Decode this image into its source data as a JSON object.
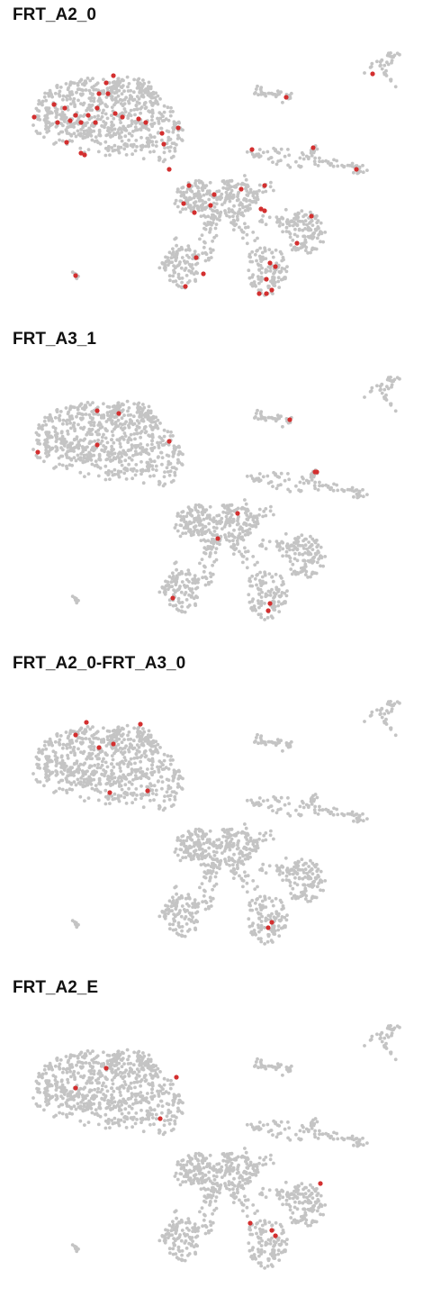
{
  "colors": {
    "background_cells": "#c4c4c4",
    "highlight_cells": "#d32f2f",
    "title": "#111111"
  },
  "chart_data": [
    {
      "type": "scatter",
      "title": "FRT_A2_0",
      "xlabel": "",
      "ylabel": "",
      "grid": false,
      "axes": "none",
      "background_color": "#c4c4c4",
      "highlight_color": "#d32f2f",
      "highlight_points": [
        [
          126,
          84
        ],
        [
          118,
          92
        ],
        [
          110,
          104
        ],
        [
          120,
          104
        ],
        [
          60,
          116
        ],
        [
          72,
          120
        ],
        [
          84,
          128
        ],
        [
          98,
          128
        ],
        [
          108,
          120
        ],
        [
          128,
          126
        ],
        [
          38,
          130
        ],
        [
          64,
          136
        ],
        [
          78,
          134
        ],
        [
          90,
          136
        ],
        [
          106,
          136
        ],
        [
          136,
          130
        ],
        [
          154,
          132
        ],
        [
          162,
          136
        ],
        [
          198,
          142
        ],
        [
          180,
          148
        ],
        [
          74,
          158
        ],
        [
          90,
          170
        ],
        [
          94,
          172
        ],
        [
          182,
          160
        ],
        [
          188,
          188
        ],
        [
          210,
          206
        ],
        [
          238,
          216
        ],
        [
          268,
          210
        ],
        [
          294,
          206
        ],
        [
          204,
          226
        ],
        [
          216,
          236
        ],
        [
          234,
          228
        ],
        [
          290,
          232
        ],
        [
          294,
          234
        ],
        [
          318,
          108
        ],
        [
          414,
          82
        ],
        [
          280,
          166
        ],
        [
          348,
          164
        ],
        [
          396,
          188
        ],
        [
          346,
          240
        ],
        [
          330,
          270
        ],
        [
          218,
          286
        ],
        [
          300,
          292
        ],
        [
          306,
          296
        ],
        [
          226,
          304
        ],
        [
          206,
          318
        ],
        [
          296,
          310
        ],
        [
          288,
          326
        ],
        [
          296,
          326
        ],
        [
          302,
          322
        ],
        [
          84,
          306
        ]
      ]
    },
    {
      "type": "scatter",
      "title": "FRT_A3_1",
      "xlabel": "",
      "ylabel": "",
      "grid": false,
      "axes": "none",
      "background_color": "#c4c4c4",
      "highlight_color": "#d32f2f",
      "highlight_points": [
        [
          108,
          96
        ],
        [
          132,
          99
        ],
        [
          42,
          142
        ],
        [
          108,
          134
        ],
        [
          188,
          130
        ],
        [
          322,
          106
        ],
        [
          350,
          164
        ],
        [
          352,
          164
        ],
        [
          264,
          210
        ],
        [
          242,
          238
        ],
        [
          192,
          304
        ],
        [
          300,
          310
        ],
        [
          298,
          318
        ]
      ]
    },
    {
      "type": "scatter",
      "title": "FRT_A2_0-FRT_A3_0",
      "xlabel": "",
      "ylabel": "",
      "grid": false,
      "axes": "none",
      "background_color": "#c4c4c4",
      "highlight_color": "#d32f2f",
      "highlight_points": [
        [
          96,
          82
        ],
        [
          156,
          84
        ],
        [
          84,
          96
        ],
        [
          126,
          106
        ],
        [
          110,
          110
        ],
        [
          122,
          160
        ],
        [
          164,
          158
        ],
        [
          302,
          304
        ],
        [
          298,
          310
        ]
      ]
    },
    {
      "type": "scatter",
      "title": "FRT_A2_E",
      "xlabel": "",
      "ylabel": "",
      "grid": false,
      "axes": "none",
      "background_color": "#c4c4c4",
      "highlight_color": "#d32f2f",
      "highlight_points": [
        [
          118,
          106
        ],
        [
          196,
          116
        ],
        [
          84,
          128
        ],
        [
          178,
          162
        ],
        [
          356,
          234
        ],
        [
          278,
          278
        ],
        [
          302,
          286
        ],
        [
          306,
          292
        ]
      ]
    }
  ]
}
